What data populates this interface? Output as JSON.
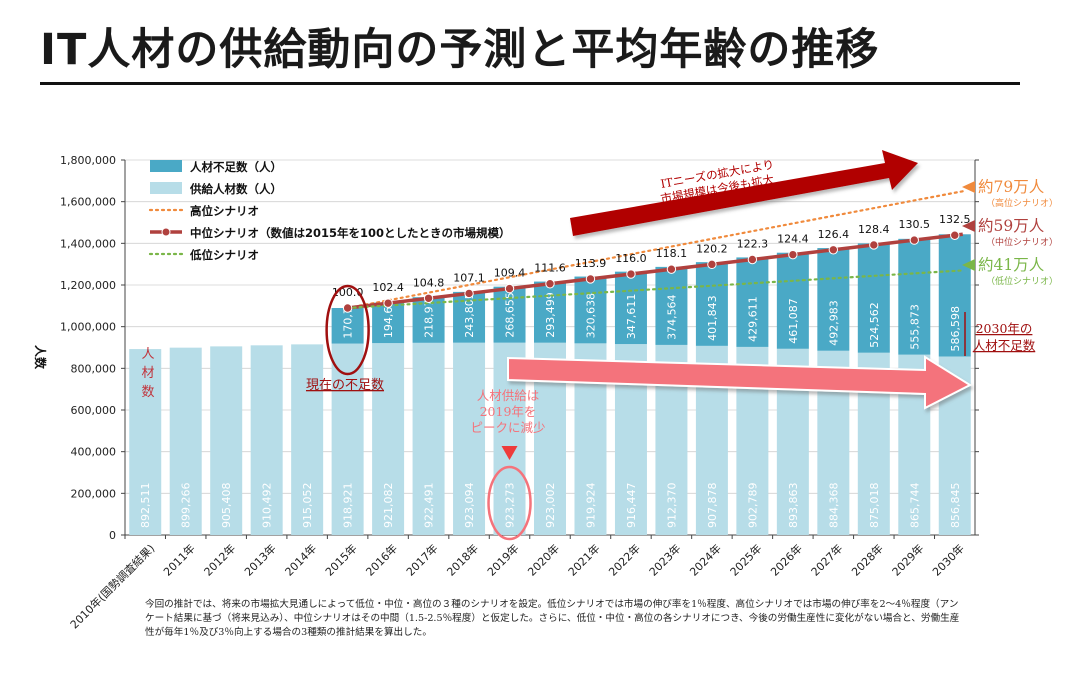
{
  "title": "IT人材の供給動向の予測と平均年齢の推移",
  "footnote": "今回の推計では、将来の市場拡大見通しによって低位・中位・高位の３種のシナリオを設定。低位シナリオでは市場の伸び率を1％程度、高位シナリオでは市場の伸び率を2～4％程度（アンケート結果に基づ（将来見込み）、中位シナリオはその中間（1.5‐2.5％程度）と仮定した。さらに、低位・中位・高位の各シナリオにつき、今後の労働生産性に変化がない場合と、労働生産性が毎年1％及び3％向上する場合の3種類の推計結果を算出した。",
  "colors": {
    "shortage": "#4aa9c6",
    "supply": "#b7dde8",
    "high": "#f08a3c",
    "mid": "#b0413e",
    "low": "#7ab648",
    "arrow_up": "#b10000",
    "arrow_down": "#f4737b",
    "annot_red": "#c0343c"
  },
  "chart_data": {
    "type": "bar",
    "stacked": true,
    "ylabel": "人数",
    "ylim": [
      0,
      1800000
    ],
    "yticks": [
      "0",
      "200,000",
      "400,000",
      "600,000",
      "800,000",
      "1,000,000",
      "1,200,000",
      "1,400,000",
      "1,600,000",
      "1,800,000"
    ],
    "categories": [
      "2010年(国勢調査結果)",
      "2011年",
      "2012年",
      "2013年",
      "2014年",
      "2015年",
      "2016年",
      "2017年",
      "2018年",
      "2019年",
      "2020年",
      "2021年",
      "2022年",
      "2023年",
      "2024年",
      "2025年",
      "2026年",
      "2027年",
      "2028年",
      "2029年",
      "2030年"
    ],
    "series": [
      {
        "name": "供給人材数（人）",
        "values": [
          892511,
          899266,
          905408,
          910492,
          915052,
          918921,
          921082,
          922491,
          923094,
          923273,
          923002,
          919924,
          916447,
          912370,
          907878,
          902789,
          893863,
          884368,
          875018,
          865744,
          856845
        ],
        "labels": [
          "892,511",
          "899,266",
          "905,408",
          "910,492",
          "915,052",
          "918,921",
          "921,082",
          "922,491",
          "923,094",
          "923,273",
          "923,002",
          "919,924",
          "916,447",
          "912,370",
          "907,878",
          "902,789",
          "893,863",
          "884,368",
          "875,018",
          "865,744",
          "856,845"
        ]
      },
      {
        "name": "人材不足数（人）",
        "values": [
          null,
          null,
          null,
          null,
          null,
          170700,
          194608,
          218976,
          243805,
          268655,
          293499,
          320638,
          347611,
          374564,
          401843,
          429611,
          461087,
          492983,
          524562,
          555873,
          586598
        ],
        "labels": [
          "",
          "",
          "",
          "",
          "",
          "170,700",
          "194,608",
          "218,976",
          "243,805",
          "268,655",
          "293,499",
          "320,638",
          "347,611",
          "374,564",
          "401,843",
          "429,611",
          "461,087",
          "492,983",
          "524,562",
          "555,873",
          "586,598"
        ]
      }
    ],
    "market_index": {
      "name": "中位シナリオ（数値は2015年を100としたときの市場規模）",
      "values": [
        100.0,
        102.4,
        104.8,
        107.1,
        109.4,
        111.6,
        113.9,
        116.0,
        118.1,
        120.2,
        122.3,
        124.4,
        126.4,
        128.4,
        130.5,
        132.5
      ],
      "labels": [
        "100.0",
        "102.4",
        "104.8",
        "107.1",
        "109.4",
        "111.6",
        "113.9",
        "116.0",
        "118.1",
        "120.2",
        "122.3",
        "124.4",
        "126.4",
        "128.4",
        "130.5",
        "132.5"
      ]
    },
    "scenario_lines": [
      {
        "key": "high",
        "name": "高位シナリオ",
        "values": [
          1089621,
          1650000
        ]
      },
      {
        "key": "mid",
        "name": "中位シナリオ（数値は2015年を100としたときの市場規模）",
        "values": [
          1089621,
          1443443
        ]
      },
      {
        "key": "low",
        "name": "低位シナリオ",
        "values": [
          1089621,
          1270000
        ]
      }
    ],
    "legend": {
      "position": "top-left",
      "items": [
        {
          "kind": "box",
          "color_key": "shortage",
          "label": "人材不足数（人）"
        },
        {
          "kind": "box",
          "color_key": "supply",
          "label": "供給人材数（人）"
        },
        {
          "kind": "dot-line",
          "color_key": "high",
          "label": "高位シナリオ"
        },
        {
          "kind": "line-marker",
          "color_key": "mid",
          "label": "中位シナリオ（数値は2015年を100としたときの市場規模）"
        },
        {
          "kind": "dot-line",
          "color_key": "low",
          "label": "低位シナリオ"
        }
      ]
    },
    "annotations": {
      "bar_label": "人材数",
      "current_shortage": "現在の不足数",
      "supply_peak": [
        "人材供給は",
        "2019年を",
        "ピークに減少"
      ],
      "it_needs": [
        "ITニーズの拡大により",
        "市場規模は今後も拡大"
      ],
      "high_end": {
        "main": "約79万人",
        "sub": "（高位シナリオ）"
      },
      "mid_end": {
        "main": "約59万人",
        "sub": "（中位シナリオ）"
      },
      "low_end": {
        "main": "約41万人",
        "sub": "（低位シナリオ）"
      },
      "shortage_2030": [
        "2030年の",
        "人材不足数"
      ]
    }
  }
}
